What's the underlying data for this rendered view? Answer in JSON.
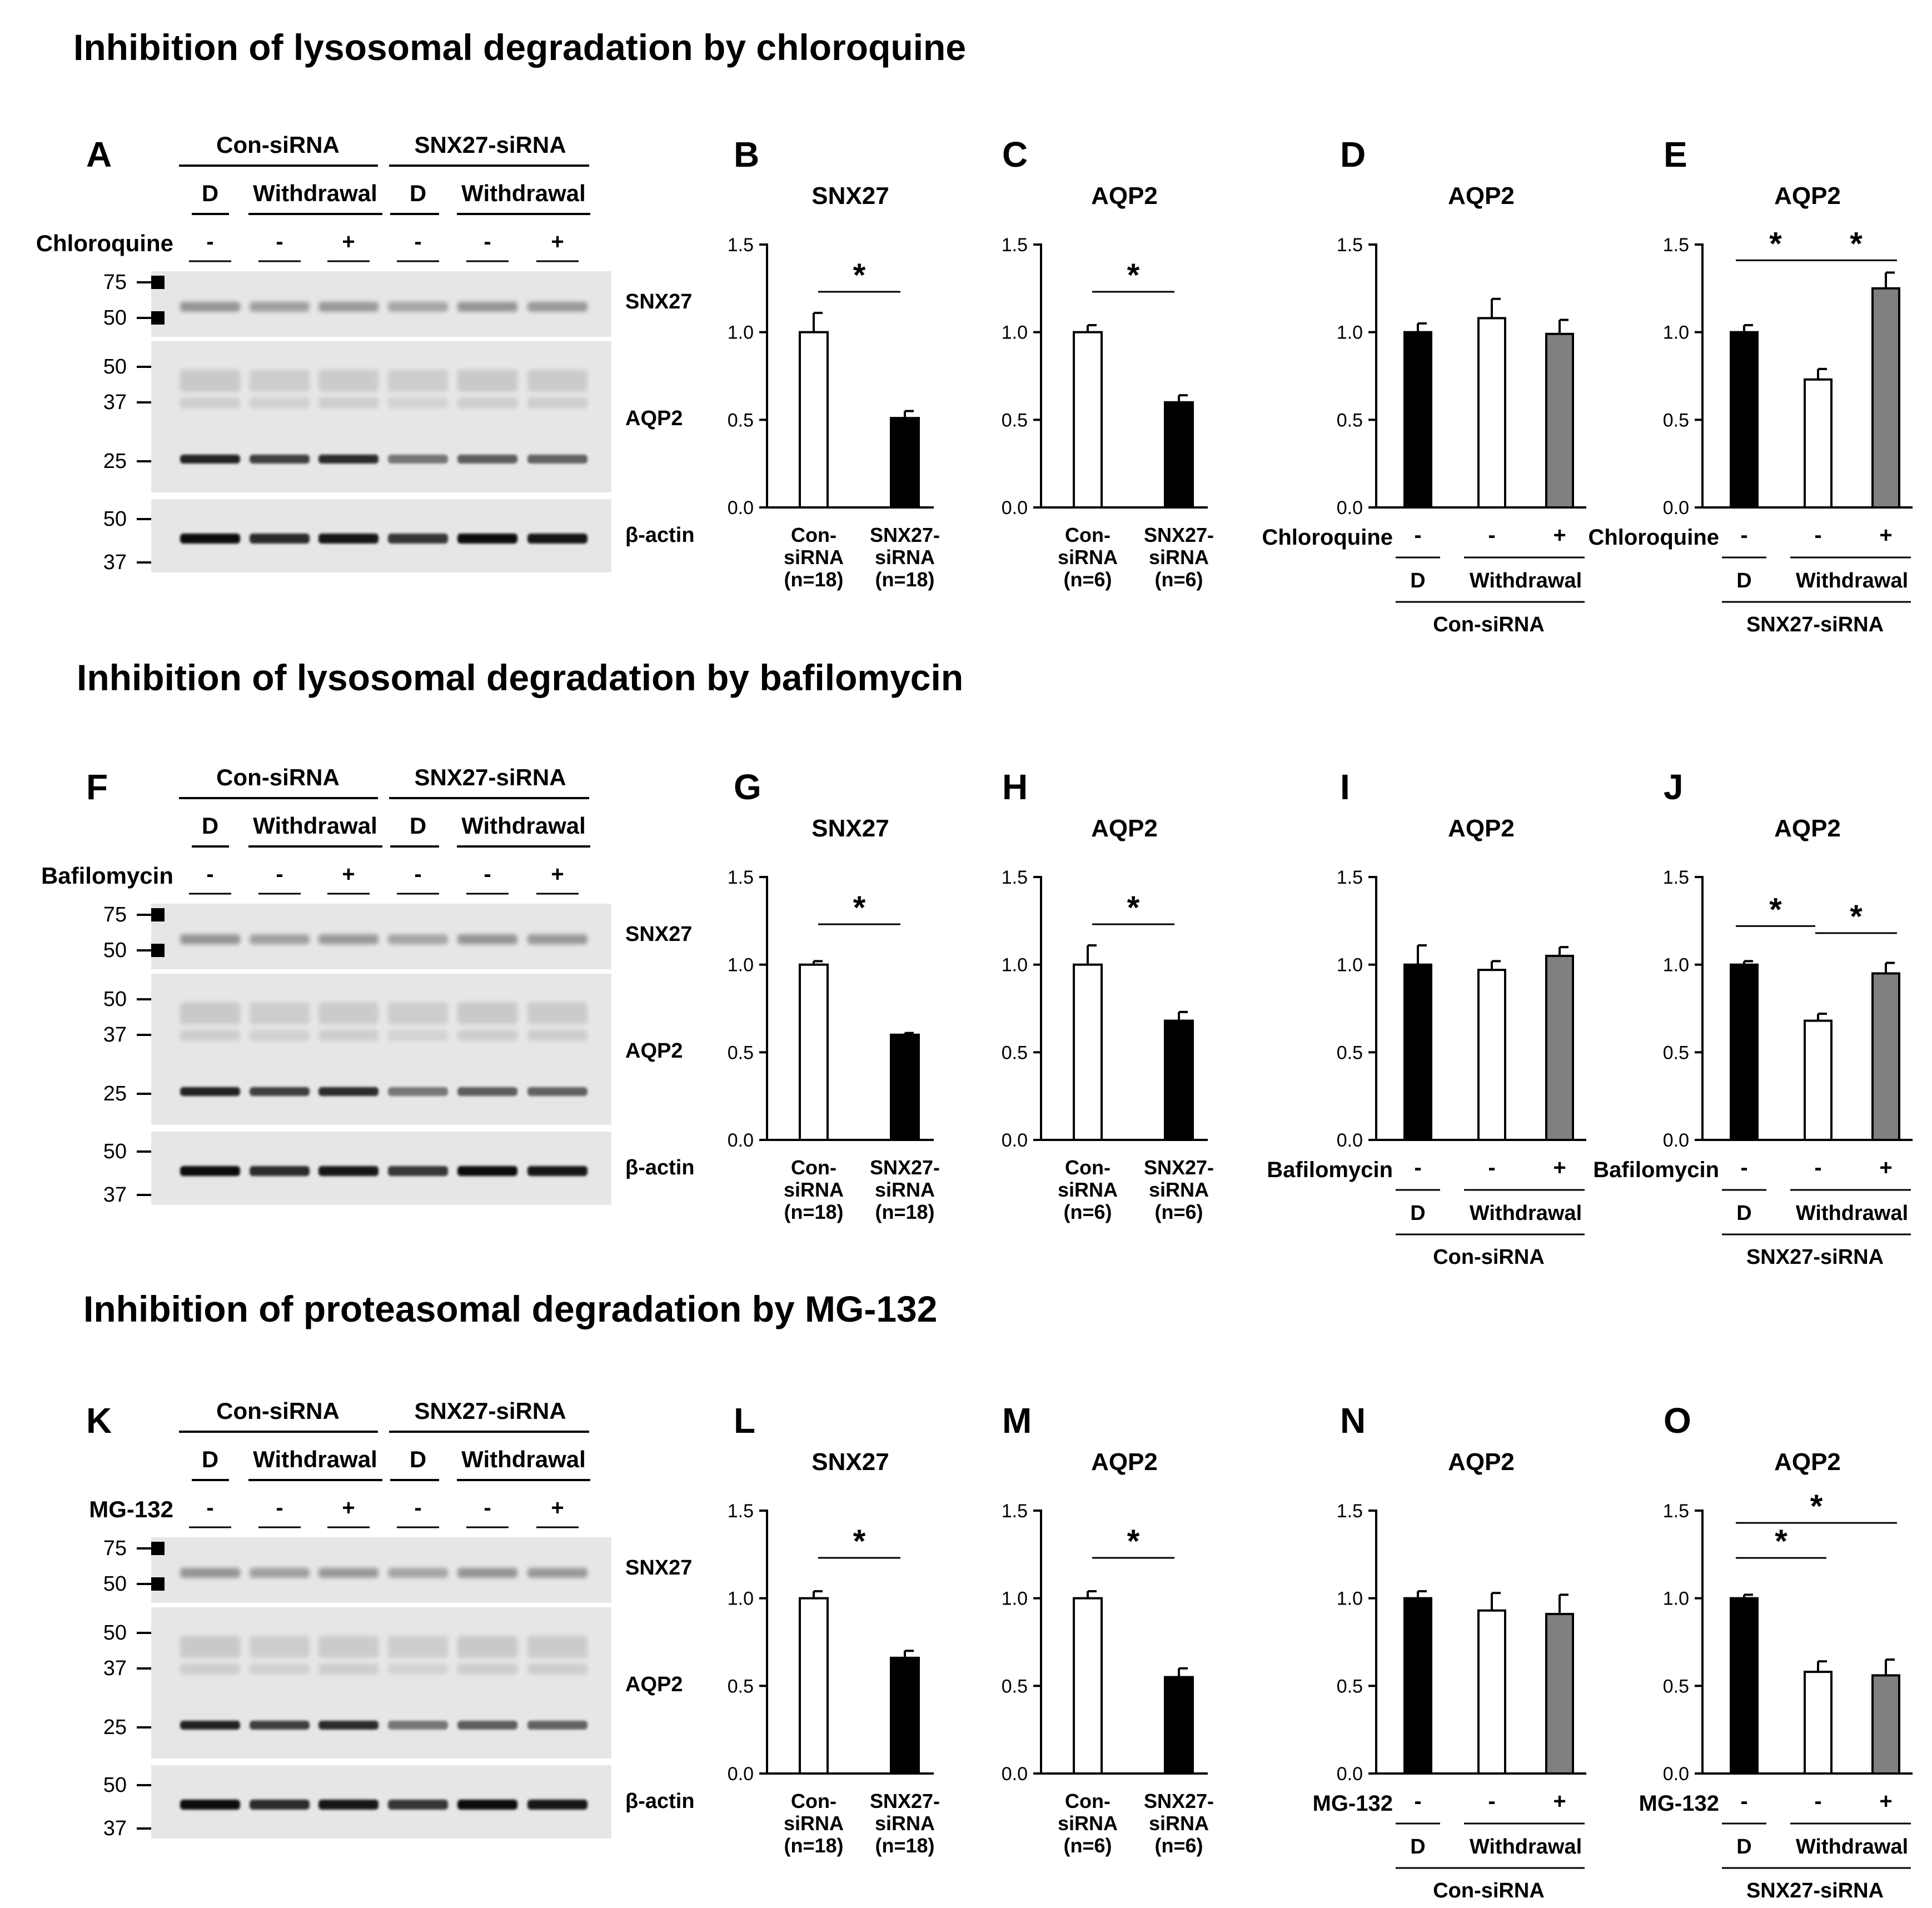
{
  "rows": [
    {
      "title": "Inhibition of lysosomal degradation by chloroquine",
      "blot": {
        "letter": "A",
        "group_labels": [
          "Con-siRNA",
          "SNX27-siRNA"
        ],
        "condition_labels": [
          "D",
          "Withdrawal",
          "D",
          "Withdrawal"
        ],
        "treatment_label": "Chloroquine",
        "treatment_signs": [
          "-",
          "-",
          "+",
          "-",
          "-",
          "+"
        ],
        "bands": [
          {
            "label": "SNX27",
            "markers": [
              "75",
              "50"
            ]
          },
          {
            "label": "AQP2",
            "markers": [
              "50",
              "37",
              "25"
            ]
          },
          {
            "label": "β-actin",
            "markers": [
              "50",
              "37"
            ]
          }
        ]
      }
    },
    {
      "title": "Inhibition of lysosomal degradation by bafilomycin",
      "blot": {
        "letter": "F",
        "group_labels": [
          "Con-siRNA",
          "SNX27-siRNA"
        ],
        "condition_labels": [
          "D",
          "Withdrawal",
          "D",
          "Withdrawal"
        ],
        "treatment_label": "Bafilomycin",
        "treatment_signs": [
          "-",
          "-",
          "+",
          "-",
          "-",
          "+"
        ],
        "bands": [
          {
            "label": "SNX27",
            "markers": [
              "75",
              "50"
            ]
          },
          {
            "label": "AQP2",
            "markers": [
              "50",
              "37",
              "25"
            ]
          },
          {
            "label": "β-actin",
            "markers": [
              "50",
              "37"
            ]
          }
        ]
      }
    },
    {
      "title": "Inhibition of proteasomal degradation by MG-132",
      "blot": {
        "letter": "K",
        "group_labels": [
          "Con-siRNA",
          "SNX27-siRNA"
        ],
        "condition_labels": [
          "D",
          "Withdrawal",
          "D",
          "Withdrawal"
        ],
        "treatment_label": "MG-132",
        "treatment_signs": [
          "-",
          "-",
          "+",
          "-",
          "-",
          "+"
        ],
        "bands": [
          {
            "label": "SNX27",
            "markers": [
              "75",
              "50"
            ]
          },
          {
            "label": "AQP2",
            "markers": [
              "50",
              "37",
              "25"
            ]
          },
          {
            "label": "β-actin",
            "markers": [
              "50",
              "37"
            ]
          }
        ]
      }
    }
  ],
  "chart_data": [
    {
      "letter": "B",
      "row": 0,
      "col": 0,
      "type": "bar",
      "title": "SNX27",
      "ylim": [
        0,
        1.5
      ],
      "yticks": [
        "0.0",
        "0.5",
        "1.0",
        "1.5"
      ],
      "kind": "two",
      "categories": [
        [
          "Con-",
          "siRNA",
          "(n=18)"
        ],
        [
          "SNX27-",
          "siRNA",
          "(n=18)"
        ]
      ],
      "values": [
        1.0,
        0.51
      ],
      "errors": [
        0.11,
        0.04
      ],
      "fills": [
        "white",
        "black"
      ],
      "sig": [
        {
          "from": 0,
          "to": 1,
          "label": "*"
        }
      ]
    },
    {
      "letter": "C",
      "row": 0,
      "col": 1,
      "type": "bar",
      "title": "AQP2",
      "ylim": [
        0,
        1.5
      ],
      "yticks": [
        "0.0",
        "0.5",
        "1.0",
        "1.5"
      ],
      "kind": "two",
      "categories": [
        [
          "Con-",
          "siRNA",
          "(n=6)"
        ],
        [
          "SNX27-",
          "siRNA",
          "(n=6)"
        ]
      ],
      "values": [
        1.0,
        0.6
      ],
      "errors": [
        0.04,
        0.04
      ],
      "fills": [
        "white",
        "black"
      ],
      "sig": [
        {
          "from": 0,
          "to": 1,
          "label": "*"
        }
      ]
    },
    {
      "letter": "D",
      "row": 0,
      "col": 2,
      "type": "bar",
      "title": "AQP2",
      "ylim": [
        0,
        1.5
      ],
      "yticks": [
        "0.0",
        "0.5",
        "1.0",
        "1.5"
      ],
      "kind": "three",
      "treatment_label": "Chloroquine",
      "signs": [
        "-",
        "-",
        "+"
      ],
      "conditions": [
        "D",
        "Withdrawal"
      ],
      "group": "Con-siRNA",
      "values": [
        1.0,
        1.08,
        0.99
      ],
      "errors": [
        0.05,
        0.11,
        0.08
      ],
      "fills": [
        "black",
        "white",
        "gray"
      ],
      "sig": []
    },
    {
      "letter": "E",
      "row": 0,
      "col": 3,
      "type": "bar",
      "title": "AQP2",
      "ylim": [
        0,
        1.5
      ],
      "yticks": [
        "0.0",
        "0.5",
        "1.0",
        "1.5"
      ],
      "kind": "three",
      "treatment_label": "Chloroquine",
      "signs": [
        "-",
        "-",
        "+"
      ],
      "conditions": [
        "D",
        "Withdrawal"
      ],
      "group": "SNX27-siRNA",
      "values": [
        1.0,
        0.73,
        1.25
      ],
      "errors": [
        0.04,
        0.06,
        0.09
      ],
      "fills": [
        "black",
        "white",
        "gray"
      ],
      "sig": [
        {
          "from": 0,
          "to": 1,
          "label": "*"
        },
        {
          "from": 1,
          "to": 2,
          "label": "*"
        }
      ]
    },
    {
      "letter": "G",
      "row": 1,
      "col": 0,
      "type": "bar",
      "title": "SNX27",
      "ylim": [
        0,
        1.5
      ],
      "yticks": [
        "0.0",
        "0.5",
        "1.0",
        "1.5"
      ],
      "kind": "two",
      "categories": [
        [
          "Con-",
          "siRNA",
          "(n=18)"
        ],
        [
          "SNX27-",
          "siRNA",
          "(n=18)"
        ]
      ],
      "values": [
        1.0,
        0.6
      ],
      "errors": [
        0.02,
        0.01
      ],
      "fills": [
        "white",
        "black"
      ],
      "sig": [
        {
          "from": 0,
          "to": 1,
          "label": "*"
        }
      ]
    },
    {
      "letter": "H",
      "row": 1,
      "col": 1,
      "type": "bar",
      "title": "AQP2",
      "ylim": [
        0,
        1.5
      ],
      "yticks": [
        "0.0",
        "0.5",
        "1.0",
        "1.5"
      ],
      "kind": "two",
      "categories": [
        [
          "Con-",
          "siRNA",
          "(n=6)"
        ],
        [
          "SNX27-",
          "siRNA",
          "(n=6)"
        ]
      ],
      "values": [
        1.0,
        0.68
      ],
      "errors": [
        0.11,
        0.05
      ],
      "fills": [
        "white",
        "black"
      ],
      "sig": [
        {
          "from": 0,
          "to": 1,
          "label": "*"
        }
      ]
    },
    {
      "letter": "I",
      "row": 1,
      "col": 2,
      "type": "bar",
      "title": "AQP2",
      "ylim": [
        0,
        1.5
      ],
      "yticks": [
        "0.0",
        "0.5",
        "1.0",
        "1.5"
      ],
      "kind": "three",
      "treatment_label": "Bafilomycin",
      "signs": [
        "-",
        "-",
        "+"
      ],
      "conditions": [
        "D",
        "Withdrawal"
      ],
      "group": "Con-siRNA",
      "values": [
        1.0,
        0.97,
        1.05
      ],
      "errors": [
        0.11,
        0.05,
        0.05
      ],
      "fills": [
        "black",
        "white",
        "gray"
      ],
      "sig": []
    },
    {
      "letter": "J",
      "row": 1,
      "col": 3,
      "type": "bar",
      "title": "AQP2",
      "ylim": [
        0,
        1.5
      ],
      "yticks": [
        "0.0",
        "0.5",
        "1.0",
        "1.5"
      ],
      "kind": "three",
      "treatment_label": "Bafilomycin",
      "signs": [
        "-",
        "-",
        "+"
      ],
      "conditions": [
        "D",
        "Withdrawal"
      ],
      "group": "SNX27-siRNA",
      "values": [
        1.0,
        0.68,
        0.95
      ],
      "errors": [
        0.02,
        0.04,
        0.06
      ],
      "fills": [
        "black",
        "white",
        "gray"
      ],
      "sig": [
        {
          "from": 0,
          "to": 1,
          "label": "*"
        },
        {
          "from": 1,
          "to": 2,
          "label": "*"
        }
      ]
    },
    {
      "letter": "L",
      "row": 2,
      "col": 0,
      "type": "bar",
      "title": "SNX27",
      "ylim": [
        0,
        1.5
      ],
      "yticks": [
        "0.0",
        "0.5",
        "1.0",
        "1.5"
      ],
      "kind": "two",
      "categories": [
        [
          "Con-",
          "siRNA",
          "(n=18)"
        ],
        [
          "SNX27-",
          "siRNA",
          "(n=18)"
        ]
      ],
      "values": [
        1.0,
        0.66
      ],
      "errors": [
        0.04,
        0.04
      ],
      "fills": [
        "white",
        "black"
      ],
      "sig": [
        {
          "from": 0,
          "to": 1,
          "label": "*"
        }
      ]
    },
    {
      "letter": "M",
      "row": 2,
      "col": 1,
      "type": "bar",
      "title": "AQP2",
      "ylim": [
        0,
        1.5
      ],
      "yticks": [
        "0.0",
        "0.5",
        "1.0",
        "1.5"
      ],
      "kind": "two",
      "categories": [
        [
          "Con-",
          "siRNA",
          "(n=6)"
        ],
        [
          "SNX27-",
          "siRNA",
          "(n=6)"
        ]
      ],
      "values": [
        1.0,
        0.55
      ],
      "errors": [
        0.04,
        0.05
      ],
      "fills": [
        "white",
        "black"
      ],
      "sig": [
        {
          "from": 0,
          "to": 1,
          "label": "*"
        }
      ]
    },
    {
      "letter": "N",
      "row": 2,
      "col": 2,
      "type": "bar",
      "title": "AQP2",
      "ylim": [
        0,
        1.5
      ],
      "yticks": [
        "0.0",
        "0.5",
        "1.0",
        "1.5"
      ],
      "kind": "three",
      "treatment_label": "MG-132",
      "signs": [
        "-",
        "-",
        "+"
      ],
      "conditions": [
        "D",
        "Withdrawal"
      ],
      "group": "Con-siRNA",
      "values": [
        1.0,
        0.93,
        0.91
      ],
      "errors": [
        0.04,
        0.1,
        0.11
      ],
      "fills": [
        "black",
        "white",
        "gray"
      ],
      "sig": []
    },
    {
      "letter": "O",
      "row": 2,
      "col": 3,
      "type": "bar",
      "title": "AQP2",
      "ylim": [
        0,
        1.5
      ],
      "yticks": [
        "0.0",
        "0.5",
        "1.0",
        "1.5"
      ],
      "kind": "three",
      "treatment_label": "MG-132",
      "signs": [
        "-",
        "-",
        "+"
      ],
      "conditions": [
        "D",
        "Withdrawal"
      ],
      "group": "SNX27-siRNA",
      "values": [
        1.0,
        0.58,
        0.56
      ],
      "errors": [
        0.02,
        0.06,
        0.09
      ],
      "fills": [
        "black",
        "white",
        "gray"
      ],
      "sig": [
        {
          "from": 0,
          "to": 1,
          "label": "*"
        },
        {
          "from": 0,
          "to": 2,
          "label": "*"
        }
      ]
    }
  ],
  "colors": {
    "white": "#ffffff",
    "black": "#000000",
    "gray": "#808080"
  }
}
